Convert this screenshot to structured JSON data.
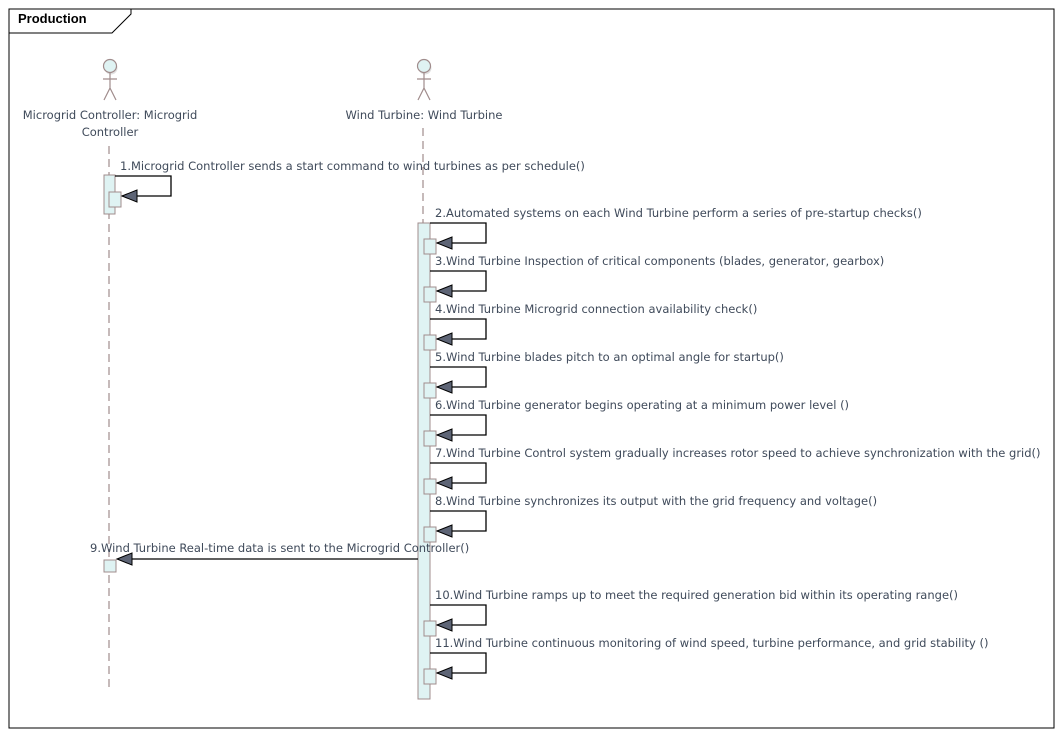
{
  "frame": {
    "title": "Production"
  },
  "lifelines": [
    {
      "id": "mc",
      "label_lines": [
        "Microgrid Controller: Microgrid",
        "Controller"
      ]
    },
    {
      "id": "wt",
      "label_lines": [
        "Wind Turbine: Wind Turbine"
      ]
    }
  ],
  "messages": [
    {
      "from": "mc",
      "to": "mc",
      "label": "1.Microgrid Controller sends a start command to wind turbines as per schedule()"
    },
    {
      "from": "wt",
      "to": "wt",
      "label": "2.Automated systems on each Wind Turbine perform a series of pre-startup checks()"
    },
    {
      "from": "wt",
      "to": "wt",
      "label": "3.Wind Turbine Inspection of critical components (blades, generator, gearbox)"
    },
    {
      "from": "wt",
      "to": "wt",
      "label": "4.Wind Turbine Microgrid connection availability check()"
    },
    {
      "from": "wt",
      "to": "wt",
      "label": "5.Wind Turbine blades pitch to an optimal angle for startup()"
    },
    {
      "from": "wt",
      "to": "wt",
      "label": "6.Wind Turbine generator begins operating at a minimum power level ()"
    },
    {
      "from": "wt",
      "to": "wt",
      "label": "7.Wind Turbine Control system gradually increases rotor speed to achieve synchronization with the grid()"
    },
    {
      "from": "wt",
      "to": "wt",
      "label": "8.Wind Turbine synchronizes its output with the grid frequency and voltage()"
    },
    {
      "from": "wt",
      "to": "mc",
      "label": "9.Wind Turbine Real-time data is sent to the Microgrid Controller()"
    },
    {
      "from": "wt",
      "to": "wt",
      "label": "10.Wind Turbine ramps up to meet the required generation bid within its operating range()"
    },
    {
      "from": "wt",
      "to": "wt",
      "label": "11.Wind Turbine continuous monitoring of wind speed, turbine performance, and grid stability ()"
    }
  ],
  "colors": {
    "lifeline": "#a08c8c",
    "activation_fill": "#dff3f3",
    "activation_stroke": "#a08c8c",
    "arrowhead": "#5d6475",
    "text": "#3f4a5a"
  }
}
